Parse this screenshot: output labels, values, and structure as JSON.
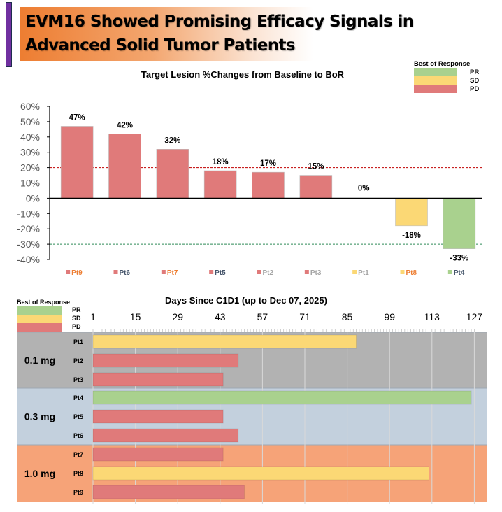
{
  "slide": {
    "title_line1": "EVM16 Showed Promising Efficacy Signals in",
    "title_line2": "Advanced Solid Tumor Patients"
  },
  "colors": {
    "PR": "#a9d18e",
    "SD": "#fbd875",
    "PD": "#e07a7a",
    "band_01": "#b2b2b2",
    "band_03": "#c3d0dd",
    "band_10": "#f6a378",
    "title_accent": "#7030a0",
    "pd_threshold": "#c00000",
    "pr_threshold": "#2e8b57"
  },
  "chart_data": [
    {
      "type": "bar",
      "title": "Target Lesion %Changes from Baseline to BoR",
      "xlabel": "",
      "ylabel": "",
      "ylim": [
        -40,
        60
      ],
      "yticks": [
        60,
        50,
        40,
        30,
        20,
        10,
        0,
        -10,
        -20,
        -30,
        -40
      ],
      "ytick_labels": [
        "60%",
        "50%",
        "40%",
        "30%",
        "20%",
        "10%",
        "0%",
        "-10%",
        "-20%",
        "-30%",
        "-40%"
      ],
      "categories": [
        "Pt9",
        "Pt6",
        "Pt7",
        "Pt5",
        "Pt2",
        "Pt3",
        "Pt1",
        "Pt8",
        "Pt4"
      ],
      "category_label_colors": [
        "#ed7d31",
        "#44546a",
        "#ed7d31",
        "#44546a",
        "#a5a5a5",
        "#a5a5a5",
        "#a5a5a5",
        "#ed7d31",
        "#44546a"
      ],
      "values": [
        47,
        42,
        32,
        18,
        17,
        15,
        0,
        -18,
        -33
      ],
      "data_labels": [
        "47%",
        "42%",
        "32%",
        "18%",
        "17%",
        "15%",
        "0%",
        "-18%",
        "-33%"
      ],
      "response": [
        "PD",
        "PD",
        "PD",
        "PD",
        "PD",
        "PD",
        "SD",
        "SD",
        "PR"
      ],
      "reference_lines": [
        {
          "value": 20,
          "color": "#c00000",
          "style": "dashed"
        },
        {
          "value": -30,
          "color": "#2e8b57",
          "style": "dashed"
        }
      ],
      "legend": {
        "title": "Best of Response",
        "placement": "top-right",
        "items": [
          {
            "label": "PR",
            "key": "PR"
          },
          {
            "label": "SD",
            "key": "SD"
          },
          {
            "label": "PD",
            "key": "PD"
          }
        ]
      },
      "grid": false
    },
    {
      "type": "bar",
      "orientation": "horizontal",
      "title": "Days Since C1D1 (up to Dec 07, 2025)",
      "xlim": [
        1,
        127
      ],
      "xticks": [
        1,
        15,
        29,
        43,
        57,
        71,
        85,
        99,
        113,
        127
      ],
      "grid": true,
      "legend": {
        "title": "Best of Response",
        "placement": "top-left",
        "items": [
          {
            "label": "PR",
            "key": "PR"
          },
          {
            "label": "SD",
            "key": "SD"
          },
          {
            "label": "PD",
            "key": "PD"
          }
        ]
      },
      "groups": [
        {
          "label": "0.1 mg",
          "band": "band_01",
          "patients": [
            {
              "name": "Pt1",
              "end_day": 88,
              "response": "SD"
            },
            {
              "name": "Pt2",
              "end_day": 49,
              "response": "PD"
            },
            {
              "name": "Pt3",
              "end_day": 44,
              "response": "PD"
            }
          ]
        },
        {
          "label": "0.3 mg",
          "band": "band_03",
          "patients": [
            {
              "name": "Pt4",
              "end_day": 126,
              "response": "PR"
            },
            {
              "name": "Pt5",
              "end_day": 44,
              "response": "PD"
            },
            {
              "name": "Pt6",
              "end_day": 49,
              "response": "PD"
            }
          ]
        },
        {
          "label": "1.0 mg",
          "band": "band_10",
          "patients": [
            {
              "name": "Pt7",
              "end_day": 44,
              "response": "PD"
            },
            {
              "name": "Pt8",
              "end_day": 112,
              "response": "SD"
            },
            {
              "name": "Pt9",
              "end_day": 51,
              "response": "PD"
            }
          ]
        }
      ]
    }
  ]
}
